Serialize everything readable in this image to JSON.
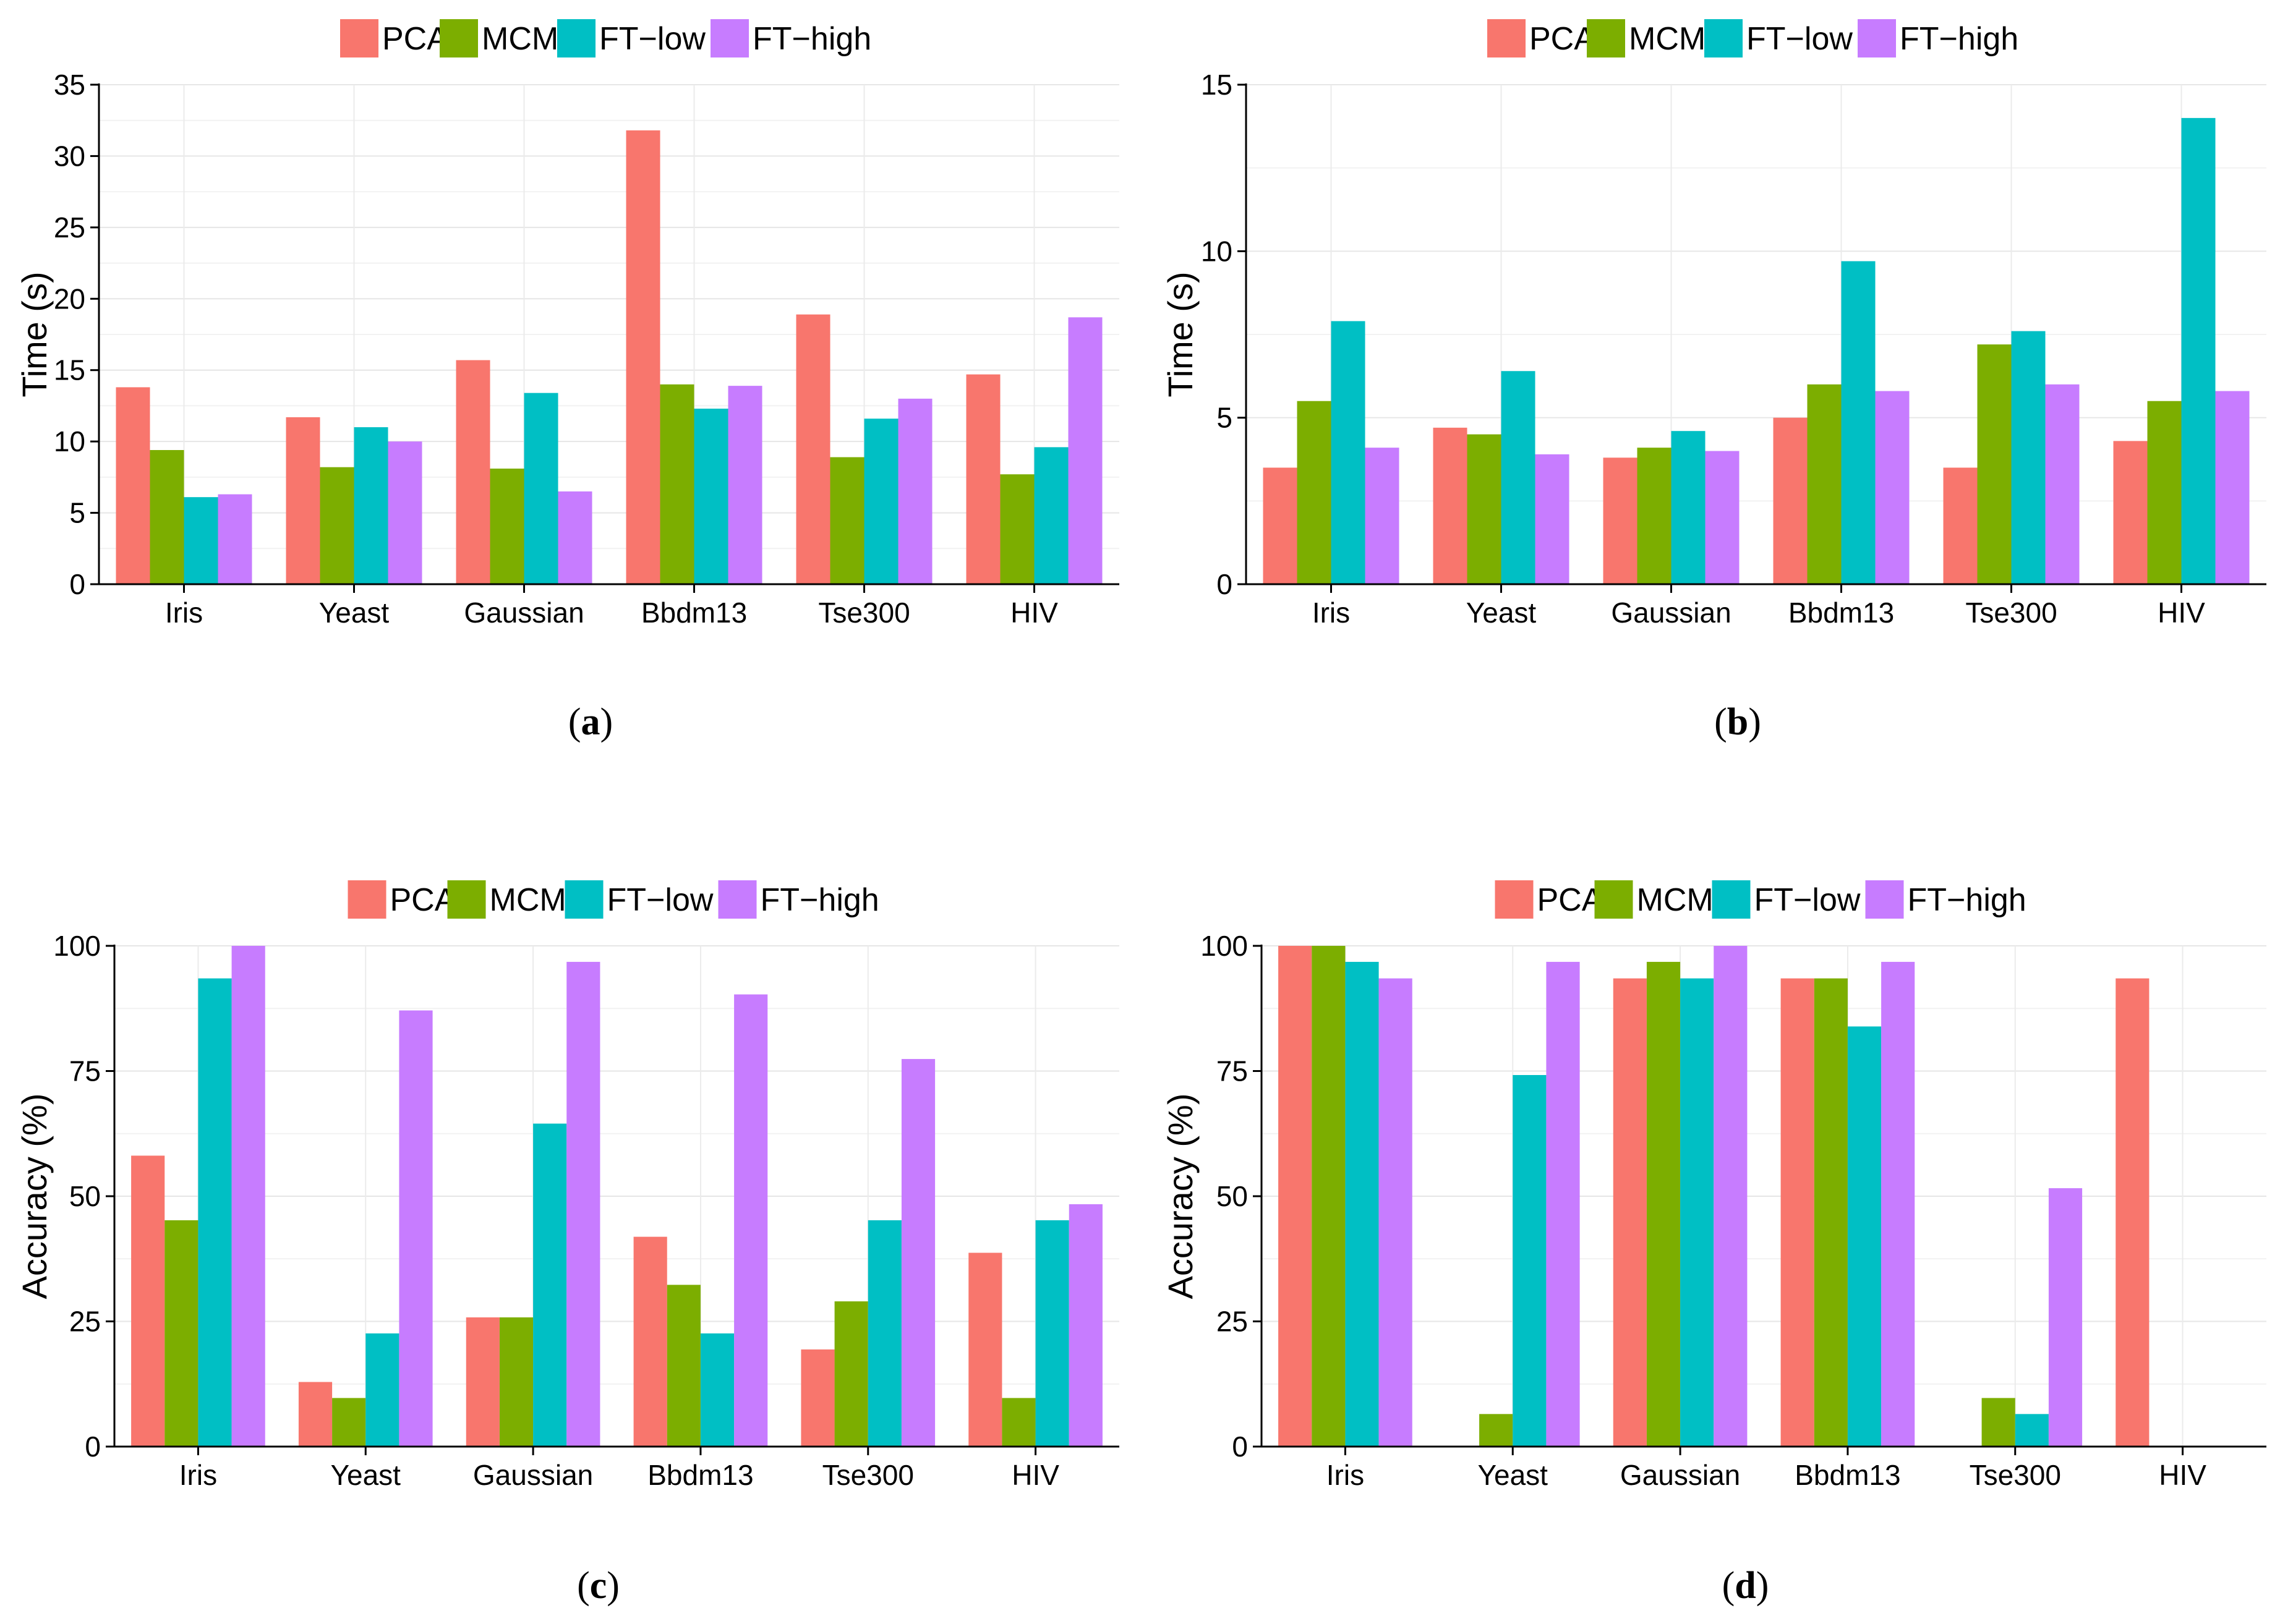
{
  "series_colors": {
    "PCA": "#F8766D",
    "MCML": "#7CAE00",
    "FT-low": "#00BFC4",
    "FT-high": "#C77CFF"
  },
  "chart_data": [
    {
      "id": "a",
      "caption_letter": "a",
      "type": "bar",
      "title": "",
      "xlabel": "",
      "ylabel": "Time (s)",
      "ylim": [
        0,
        35
      ],
      "yticks": [
        0,
        5,
        10,
        15,
        20,
        25,
        30,
        35
      ],
      "legend_position": "top",
      "grid": true,
      "categories": [
        "Iris",
        "Yeast",
        "Gaussian",
        "Bbdm13",
        "Tse300",
        "HIV"
      ],
      "series": [
        {
          "name": "PCA",
          "values": [
            13.8,
            11.7,
            15.7,
            31.8,
            18.9,
            14.7
          ]
        },
        {
          "name": "MCML",
          "values": [
            9.4,
            8.2,
            8.1,
            14.0,
            8.9,
            7.7
          ]
        },
        {
          "name": "FT−low",
          "values": [
            6.1,
            11.0,
            13.4,
            12.3,
            11.6,
            9.6
          ]
        },
        {
          "name": "FT−high",
          "values": [
            6.3,
            10.0,
            6.5,
            13.9,
            13.0,
            18.7
          ]
        }
      ]
    },
    {
      "id": "b",
      "caption_letter": "b",
      "type": "bar",
      "title": "",
      "xlabel": "",
      "ylabel": "Time (s)",
      "ylim": [
        0,
        15
      ],
      "yticks": [
        0,
        5,
        10,
        15
      ],
      "legend_position": "top",
      "grid": true,
      "categories": [
        "Iris",
        "Yeast",
        "Gaussian",
        "Bbdm13",
        "Tse300",
        "HIV"
      ],
      "series": [
        {
          "name": "PCA",
          "values": [
            3.5,
            4.7,
            3.8,
            5.0,
            3.5,
            4.3
          ]
        },
        {
          "name": "MCML",
          "values": [
            5.5,
            4.5,
            4.1,
            6.0,
            7.2,
            5.5
          ]
        },
        {
          "name": "FT−low",
          "values": [
            7.9,
            6.4,
            4.6,
            9.7,
            7.6,
            14.0
          ]
        },
        {
          "name": "FT−high",
          "values": [
            4.1,
            3.9,
            4.0,
            5.8,
            6.0,
            5.8
          ]
        }
      ]
    },
    {
      "id": "c",
      "caption_letter": "c",
      "type": "bar",
      "title": "",
      "xlabel": "",
      "ylabel": "Accuracy (%)",
      "ylim": [
        0,
        100
      ],
      "yticks": [
        0,
        25,
        50,
        75,
        100
      ],
      "legend_position": "top",
      "grid": true,
      "categories": [
        "Iris",
        "Yeast",
        "Gaussian",
        "Bbdm13",
        "Tse300",
        "HIV"
      ],
      "series": [
        {
          "name": "PCA",
          "values": [
            58.1,
            12.9,
            25.8,
            41.9,
            19.4,
            38.7
          ]
        },
        {
          "name": "MCML",
          "values": [
            45.2,
            9.7,
            25.8,
            32.3,
            29.0,
            9.7
          ]
        },
        {
          "name": "FT−low",
          "values": [
            93.5,
            22.6,
            64.5,
            22.6,
            45.2,
            45.2
          ]
        },
        {
          "name": "FT−high",
          "values": [
            100,
            87.1,
            96.8,
            90.3,
            77.4,
            48.4
          ]
        }
      ]
    },
    {
      "id": "d",
      "caption_letter": "d",
      "type": "bar",
      "title": "",
      "xlabel": "",
      "ylabel": "Accuracy (%)",
      "ylim": [
        0,
        100
      ],
      "yticks": [
        0,
        25,
        50,
        75,
        100
      ],
      "legend_position": "top",
      "grid": true,
      "categories": [
        "Iris",
        "Yeast",
        "Gaussian",
        "Bbdm13",
        "Tse300",
        "HIV"
      ],
      "series": [
        {
          "name": "PCA",
          "values": [
            100,
            0,
            93.5,
            93.5,
            0,
            93.5
          ]
        },
        {
          "name": "MCML",
          "values": [
            100,
            6.5,
            96.8,
            93.5,
            9.7,
            0
          ]
        },
        {
          "name": "FT−low",
          "values": [
            96.8,
            74.2,
            93.5,
            83.9,
            6.5,
            0
          ]
        },
        {
          "name": "FT−high",
          "values": [
            93.5,
            96.8,
            100,
            96.8,
            51.6,
            0
          ]
        }
      ]
    }
  ]
}
